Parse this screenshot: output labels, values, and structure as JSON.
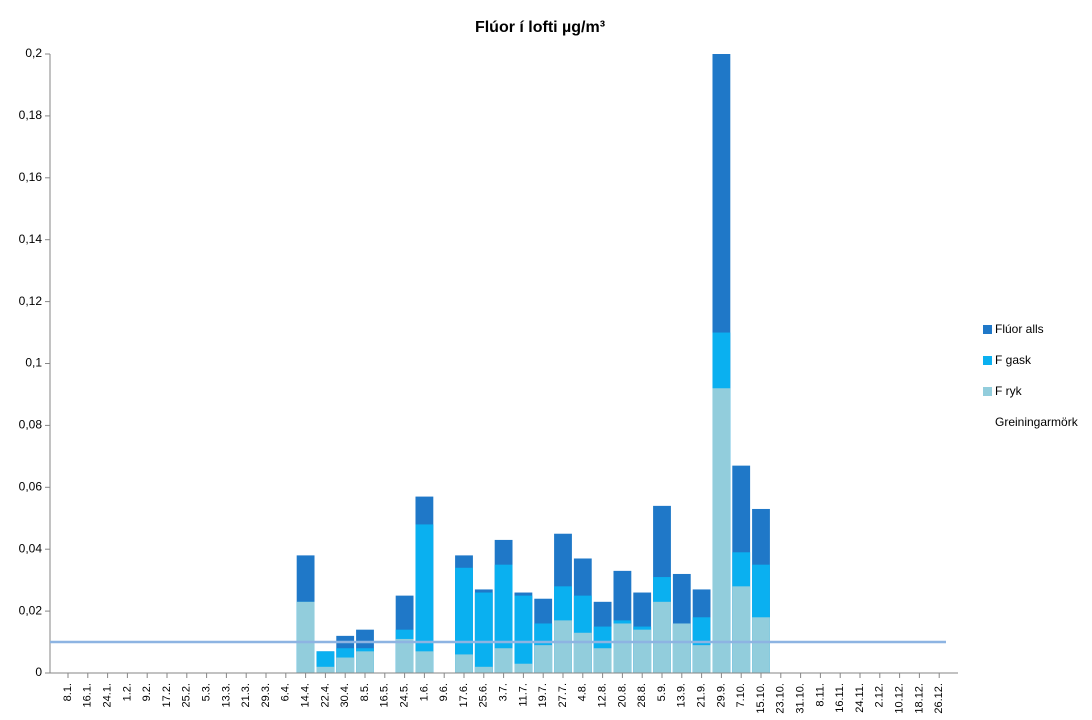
{
  "chart_data": {
    "type": "bar",
    "title": "Flúor í lofti µg/m³",
    "categories": [
      "8.1.",
      "16.1.",
      "24.1.",
      "1.2.",
      "9.2.",
      "17.2.",
      "25.2.",
      "5.3.",
      "13.3.",
      "21.3.",
      "29.3.",
      "6.4.",
      "14.4.",
      "22.4.",
      "30.4.",
      "8.5.",
      "16.5.",
      "24.5.",
      "1.6.",
      "9.6.",
      "17.6.",
      "25.6.",
      "3.7.",
      "11.7.",
      "19.7.",
      "27.7.",
      "4.8.",
      "12.8.",
      "20.8.",
      "28.8.",
      "5.9.",
      "13.9.",
      "21.9.",
      "29.9.",
      "7.10.",
      "15.10.",
      "23.10.",
      "31.10.",
      "8.11.",
      "16.11.",
      "24.11.",
      "2.12.",
      "10.12.",
      "18.12.",
      "26.12."
    ],
    "series": [
      {
        "name": "Flúor alls",
        "color": "#1f78c8",
        "values": [
          null,
          null,
          null,
          null,
          null,
          null,
          null,
          null,
          null,
          null,
          null,
          null,
          0.038,
          0.007,
          0.012,
          0.014,
          null,
          0.025,
          0.057,
          null,
          0.038,
          0.027,
          0.043,
          0.026,
          0.024,
          0.045,
          0.037,
          0.023,
          0.033,
          0.026,
          0.054,
          0.032,
          0.027,
          0.2,
          0.067,
          0.053,
          null,
          null,
          null,
          null,
          null,
          null,
          null,
          null,
          null
        ]
      },
      {
        "name": "F gask",
        "color": "#0ab0f0",
        "values": [
          null,
          null,
          null,
          null,
          null,
          null,
          null,
          null,
          null,
          null,
          null,
          null,
          0.023,
          0.007,
          0.008,
          0.008,
          null,
          0.014,
          0.048,
          null,
          0.034,
          0.026,
          0.035,
          0.025,
          0.016,
          0.028,
          0.025,
          0.015,
          0.017,
          0.015,
          0.031,
          0.016,
          0.018,
          0.11,
          0.039,
          0.035,
          null,
          null,
          null,
          null,
          null,
          null,
          null,
          null,
          null
        ]
      },
      {
        "name": "F ryk",
        "color": "#92cddc",
        "values": [
          null,
          null,
          null,
          null,
          null,
          null,
          null,
          null,
          null,
          null,
          null,
          null,
          0.023,
          0.002,
          0.005,
          0.007,
          null,
          0.011,
          0.007,
          null,
          0.006,
          0.002,
          0.008,
          0.003,
          0.009,
          0.017,
          0.013,
          0.008,
          0.016,
          0.014,
          0.023,
          0.016,
          0.009,
          0.092,
          0.028,
          0.018,
          null,
          null,
          null,
          null,
          null,
          null,
          null,
          null,
          null
        ]
      }
    ],
    "threshold": {
      "name": "Greiningarmörk",
      "color": "#8db4e2",
      "value": 0.01
    },
    "ylim": [
      0,
      0.2
    ],
    "yticks": [
      0,
      {
        "value": 0.02,
        "label": "0,02"
      },
      {
        "value": 0.04,
        "label": "0,04"
      },
      {
        "value": 0.06,
        "label": "0,06"
      },
      {
        "value": 0.08,
        "label": "0,08"
      },
      {
        "value": 0.1,
        "label": "0,1"
      },
      {
        "value": 0.12,
        "label": "0,12"
      },
      {
        "value": 0.14,
        "label": "0,14"
      },
      {
        "value": 0.16,
        "label": "0,16"
      },
      {
        "value": 0.18,
        "label": "0,18"
      },
      {
        "value": 0.2,
        "label": "0,2"
      }
    ],
    "legend": "right"
  }
}
